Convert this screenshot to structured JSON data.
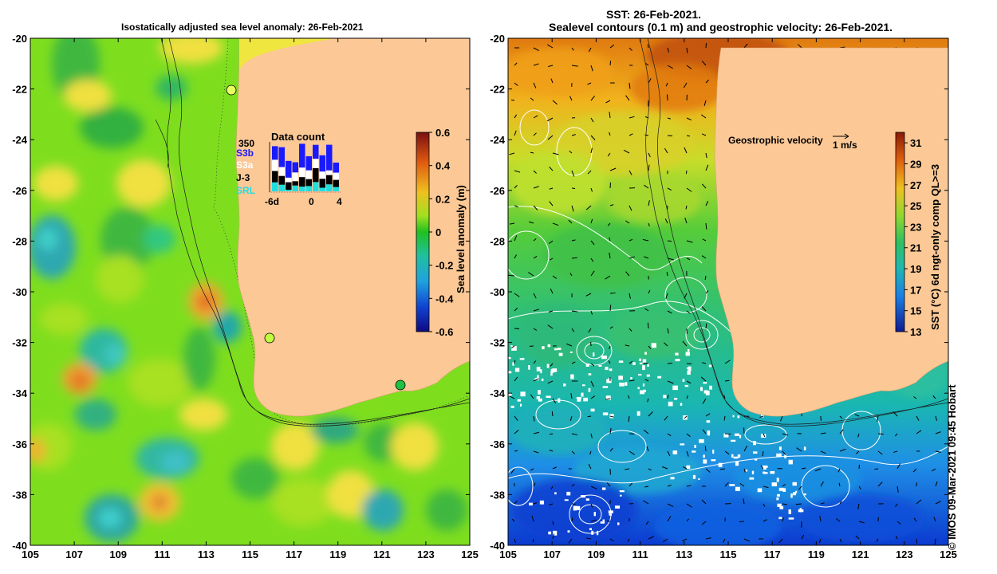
{
  "left_panel": {
    "title": "Isostatically adjusted sea level anomaly: 26-Feb-2021",
    "colorbar": {
      "label": "Sea level anomaly (m)",
      "ticks": [
        "0.6",
        "0.4",
        "0.2",
        "0",
        "-0.2",
        "-0.4",
        "-0.6"
      ],
      "range": [
        -0.6,
        0.6
      ]
    },
    "inset": {
      "title": "Data count",
      "max_label": "350",
      "x_ticks": [
        "-6d",
        "0",
        "4"
      ],
      "legend": [
        {
          "label": "S3b",
          "color": "#1a1aff"
        },
        {
          "label": "S3a",
          "color": "#ffffff"
        },
        {
          "label": "J-3",
          "color": "#000000"
        },
        {
          "label": "SRL",
          "color": "#22dddd"
        }
      ]
    }
  },
  "right_panel": {
    "title_line1": "SST: 26-Feb-2021.",
    "title_line2": "Sealevel contours (0.1 m) and geostrophic velocity: 26-Feb-2021.",
    "velocity_key_label": "Geostrophic velocity",
    "velocity_key_scale": "1 m/s",
    "colorbar": {
      "label": "SST (°C) 6d ngt-only comp QL>=3",
      "ticks": [
        "31",
        "29",
        "27",
        "25",
        "23",
        "21",
        "19",
        "17",
        "15",
        "13"
      ],
      "range": [
        13,
        32
      ]
    }
  },
  "axes": {
    "x_ticks": [
      "105",
      "107",
      "109",
      "111",
      "113",
      "115",
      "117",
      "119",
      "121",
      "123",
      "125"
    ],
    "y_ticks": [
      "-20",
      "-22",
      "-24",
      "-26",
      "-28",
      "-30",
      "-32",
      "-34",
      "-36",
      "-38",
      "-40"
    ],
    "lon_range": [
      105,
      125
    ],
    "lat_range": [
      -40,
      -20
    ]
  },
  "credit": "© IMOS 09-Mar-2021 09:45 Hobart",
  "colors": {
    "land": "#fbc896",
    "sla_background": "#7ede1e",
    "sst_background": "#2fbf78"
  }
}
